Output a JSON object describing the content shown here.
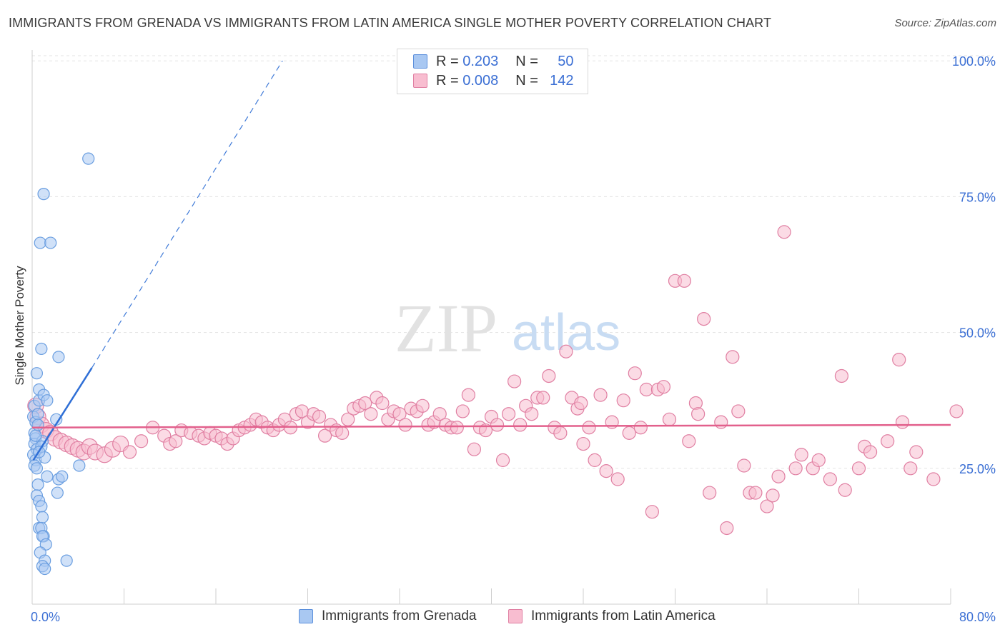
{
  "title": "IMMIGRANTS FROM GRENADA VS IMMIGRANTS FROM LATIN AMERICA SINGLE MOTHER POVERTY CORRELATION CHART",
  "source": "Source: ZipAtlas.com",
  "watermark": {
    "zip": "ZIP",
    "atlas": "atlas"
  },
  "legend": {
    "r_label": "R =",
    "n_label": "N =",
    "series": [
      {
        "r": "0.203",
        "n": "50",
        "fill": "#a9c8f2",
        "stroke": "#5b8fdc"
      },
      {
        "r": "0.008",
        "n": "142",
        "fill": "#f8bdd0",
        "stroke": "#e07fa2"
      }
    ]
  },
  "bottom_legend": [
    "Immigrants from Grenada",
    "Immigrants from Latin America"
  ],
  "chart_data": {
    "type": "scatter",
    "ylabel": "Single Mother Poverty",
    "xlim": [
      0,
      80
    ],
    "ylim": [
      0,
      102
    ],
    "x_tick_labels": [
      {
        "value": 0,
        "label": "0.0%"
      },
      {
        "value": 80,
        "label": "80.0%"
      }
    ],
    "y_tick_labels": [
      {
        "value": 25,
        "label": "25.0%"
      },
      {
        "value": 50,
        "label": "50.0%"
      },
      {
        "value": 75,
        "label": "75.0%"
      },
      {
        "value": 100,
        "label": "100.0%"
      }
    ],
    "gridlines_y": [
      25,
      50,
      75,
      100
    ],
    "series": [
      {
        "name": "Immigrants from Grenada",
        "color": "#6a9ee0",
        "fill": "#a9c8f2",
        "trend": {
          "x": [
            0.1,
            5.2
          ],
          "y": [
            26.5,
            43.5
          ],
          "dashed_to": {
            "x": 21.8,
            "y": 100
          }
        },
        "points": [
          [
            0.1,
            34.5
          ],
          [
            0.2,
            36.5
          ],
          [
            0.3,
            33.5
          ],
          [
            0.2,
            31.5
          ],
          [
            0.3,
            30.5
          ],
          [
            0.2,
            29.5
          ],
          [
            0.4,
            28.5
          ],
          [
            0.1,
            27.5
          ],
          [
            0.3,
            26.5
          ],
          [
            0.2,
            25.5
          ],
          [
            0.4,
            25
          ],
          [
            0.5,
            35
          ],
          [
            0.6,
            37.5
          ],
          [
            0.4,
            42.5
          ],
          [
            0.6,
            39.5
          ],
          [
            0.8,
            47
          ],
          [
            1.0,
            75.5
          ],
          [
            0.7,
            66.5
          ],
          [
            1.6,
            66.5
          ],
          [
            4.9,
            82
          ],
          [
            2.3,
            45.5
          ],
          [
            1.0,
            38.5
          ],
          [
            1.3,
            37.5
          ],
          [
            2.1,
            34
          ],
          [
            0.9,
            30
          ],
          [
            1.1,
            27
          ],
          [
            0.5,
            22
          ],
          [
            0.4,
            20
          ],
          [
            0.6,
            19
          ],
          [
            0.8,
            18
          ],
          [
            0.9,
            16
          ],
          [
            0.6,
            14
          ],
          [
            0.8,
            14
          ],
          [
            1.0,
            12.5
          ],
          [
            0.9,
            12.5
          ],
          [
            1.2,
            11
          ],
          [
            0.7,
            9.5
          ],
          [
            1.1,
            8
          ],
          [
            0.9,
            7
          ],
          [
            1.1,
            6.5
          ],
          [
            3.0,
            8
          ],
          [
            1.3,
            23.5
          ],
          [
            2.3,
            23
          ],
          [
            2.6,
            23.5
          ],
          [
            2.2,
            20.5
          ],
          [
            4.1,
            25.5
          ],
          [
            0.3,
            31
          ],
          [
            0.5,
            33
          ],
          [
            0.8,
            29
          ],
          [
            0.6,
            28
          ]
        ]
      },
      {
        "name": "Immigrants from Latin America",
        "color": "#e07fa2",
        "fill": "#f8bdd0",
        "trend": {
          "x": [
            0,
            80
          ],
          "y": [
            32.5,
            33
          ]
        },
        "points": [
          [
            0.3,
            36.5
          ],
          [
            0.5,
            34.5
          ],
          [
            0.8,
            33
          ],
          [
            1.2,
            32
          ],
          [
            1.6,
            31.5
          ],
          [
            2.0,
            30.5
          ],
          [
            2.5,
            30
          ],
          [
            3.0,
            29.5
          ],
          [
            3.5,
            29
          ],
          [
            4.0,
            28.5
          ],
          [
            4.5,
            28
          ],
          [
            5.0,
            29
          ],
          [
            5.5,
            28
          ],
          [
            6.3,
            27.5
          ],
          [
            7.0,
            28.5
          ],
          [
            7.7,
            29.5
          ],
          [
            8.5,
            28
          ],
          [
            9.5,
            30
          ],
          [
            10.5,
            32.5
          ],
          [
            11.5,
            31
          ],
          [
            12.0,
            29.5
          ],
          [
            12.5,
            30
          ],
          [
            13.0,
            32
          ],
          [
            13.8,
            31.5
          ],
          [
            14.5,
            31
          ],
          [
            15.0,
            30.5
          ],
          [
            15.5,
            31.5
          ],
          [
            16.0,
            31
          ],
          [
            16.5,
            30.5
          ],
          [
            17.0,
            29.5
          ],
          [
            17.5,
            30.5
          ],
          [
            18.0,
            32
          ],
          [
            18.5,
            32.5
          ],
          [
            19.0,
            33
          ],
          [
            19.5,
            34
          ],
          [
            20.0,
            33.5
          ],
          [
            20.5,
            32.5
          ],
          [
            21.0,
            32
          ],
          [
            21.5,
            33
          ],
          [
            22.0,
            34
          ],
          [
            22.5,
            32.5
          ],
          [
            23.0,
            35
          ],
          [
            23.5,
            35.5
          ],
          [
            24.0,
            33.5
          ],
          [
            24.5,
            35
          ],
          [
            25.0,
            34.5
          ],
          [
            25.5,
            31
          ],
          [
            26.0,
            33
          ],
          [
            26.5,
            32
          ],
          [
            27.0,
            31.5
          ],
          [
            27.5,
            34
          ],
          [
            28.0,
            36
          ],
          [
            28.5,
            36.5
          ],
          [
            29.0,
            37
          ],
          [
            29.5,
            35
          ],
          [
            30.0,
            38
          ],
          [
            30.5,
            37
          ],
          [
            31.0,
            34
          ],
          [
            31.5,
            35.5
          ],
          [
            32.0,
            35
          ],
          [
            32.5,
            33
          ],
          [
            33.0,
            36
          ],
          [
            33.5,
            35.5
          ],
          [
            34.0,
            36.5
          ],
          [
            34.5,
            33
          ],
          [
            35.0,
            33.5
          ],
          [
            35.5,
            35
          ],
          [
            36.0,
            33
          ],
          [
            36.5,
            32.5
          ],
          [
            37.0,
            32.5
          ],
          [
            37.5,
            35.5
          ],
          [
            38.0,
            38.5
          ],
          [
            38.5,
            28.5
          ],
          [
            39.0,
            32.5
          ],
          [
            39.5,
            32
          ],
          [
            40.0,
            34.5
          ],
          [
            40.5,
            33
          ],
          [
            41.0,
            26.5
          ],
          [
            41.5,
            35
          ],
          [
            42.0,
            41
          ],
          [
            42.5,
            33
          ],
          [
            43.0,
            36.5
          ],
          [
            43.5,
            35
          ],
          [
            44.0,
            38
          ],
          [
            44.5,
            38
          ],
          [
            45.0,
            42
          ],
          [
            45.5,
            32.5
          ],
          [
            46.0,
            31.5
          ],
          [
            46.5,
            46.5
          ],
          [
            47.0,
            38
          ],
          [
            47.5,
            36
          ],
          [
            47.8,
            37
          ],
          [
            48.0,
            29.5
          ],
          [
            48.5,
            32.5
          ],
          [
            49.0,
            26.5
          ],
          [
            49.5,
            38.5
          ],
          [
            50.0,
            24.5
          ],
          [
            50.5,
            33.5
          ],
          [
            51.0,
            23
          ],
          [
            51.5,
            37.5
          ],
          [
            52.0,
            31.5
          ],
          [
            52.5,
            42.5
          ],
          [
            53.0,
            32.5
          ],
          [
            53.5,
            39.5
          ],
          [
            54.0,
            17
          ],
          [
            54.5,
            39.5
          ],
          [
            55.0,
            40
          ],
          [
            55.5,
            34
          ],
          [
            56.0,
            59.5
          ],
          [
            56.8,
            59.5
          ],
          [
            57.2,
            30
          ],
          [
            57.8,
            37
          ],
          [
            58.0,
            35
          ],
          [
            58.5,
            52.5
          ],
          [
            59.0,
            20.5
          ],
          [
            60.0,
            33.5
          ],
          [
            60.5,
            14
          ],
          [
            61.0,
            45.5
          ],
          [
            61.5,
            35.5
          ],
          [
            62.0,
            25.5
          ],
          [
            62.5,
            20.5
          ],
          [
            63.0,
            20.5
          ],
          [
            64.0,
            18
          ],
          [
            64.5,
            20
          ],
          [
            65.0,
            23.5
          ],
          [
            65.5,
            68.5
          ],
          [
            66.5,
            25
          ],
          [
            67.0,
            27.5
          ],
          [
            68.0,
            25
          ],
          [
            68.5,
            26.5
          ],
          [
            69.5,
            23
          ],
          [
            70.5,
            42
          ],
          [
            70.8,
            21
          ],
          [
            72.0,
            25
          ],
          [
            72.5,
            29
          ],
          [
            73.0,
            28
          ],
          [
            74.5,
            30
          ],
          [
            75.5,
            45
          ],
          [
            75.8,
            33.5
          ],
          [
            76.5,
            25
          ],
          [
            77.0,
            28
          ],
          [
            78.5,
            23
          ],
          [
            80.5,
            35.5
          ]
        ]
      }
    ]
  }
}
